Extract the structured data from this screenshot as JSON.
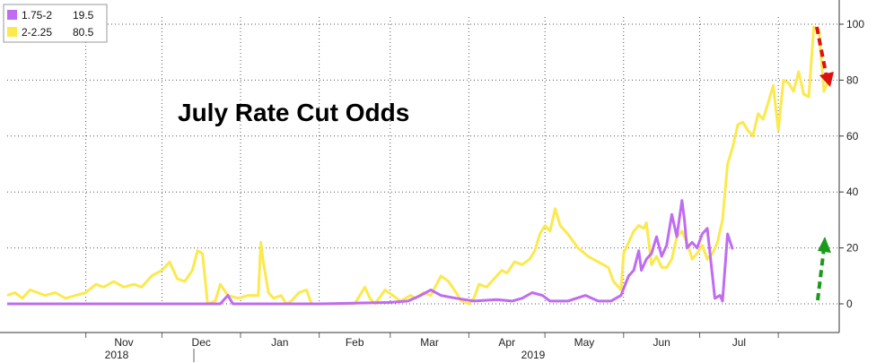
{
  "chart_data": {
    "type": "line",
    "title": "July Rate Cut Odds",
    "xlabel": "",
    "ylabel": "",
    "ylim": [
      0,
      100
    ],
    "y_ticks": [
      0,
      20,
      40,
      60,
      80,
      100
    ],
    "y_axis_side": "right",
    "grid": true,
    "legend_position": "top-left",
    "x_month_labels": [
      "Nov",
      "Dec",
      "Jan",
      "Feb",
      "Mar",
      "Apr",
      "May",
      "Jun",
      "Jul"
    ],
    "x_year_labels": [
      "2018",
      "2019"
    ],
    "series": [
      {
        "name": "1.75-2",
        "legend_value": "19.5",
        "color": "#bf6cf2",
        "points": [
          [
            "2018-10-01",
            0
          ],
          [
            "2018-11-01",
            0
          ],
          [
            "2018-12-01",
            0
          ],
          [
            "2018-12-24",
            0
          ],
          [
            "2018-12-27",
            3
          ],
          [
            "2018-12-29",
            0
          ],
          [
            "2019-02-01",
            0
          ],
          [
            "2019-03-01",
            0.5
          ],
          [
            "2019-03-08",
            1
          ],
          [
            "2019-03-13",
            3
          ],
          [
            "2019-03-17",
            5
          ],
          [
            "2019-03-21",
            3
          ],
          [
            "2019-03-27",
            2
          ],
          [
            "2019-04-03",
            1
          ],
          [
            "2019-04-12",
            1.5
          ],
          [
            "2019-04-18",
            1
          ],
          [
            "2019-04-22",
            2
          ],
          [
            "2019-04-26",
            4
          ],
          [
            "2019-04-30",
            3
          ],
          [
            "2019-05-03",
            1
          ],
          [
            "2019-05-10",
            1
          ],
          [
            "2019-05-17",
            3
          ],
          [
            "2019-05-22",
            1
          ],
          [
            "2019-05-27",
            1
          ],
          [
            "2019-05-31",
            3
          ],
          [
            "2019-06-03",
            10
          ],
          [
            "2019-06-05",
            12
          ],
          [
            "2019-06-07",
            19
          ],
          [
            "2019-06-08",
            12
          ],
          [
            "2019-06-10",
            16
          ],
          [
            "2019-06-12",
            18
          ],
          [
            "2019-06-14",
            24
          ],
          [
            "2019-06-16",
            17
          ],
          [
            "2019-06-18",
            21
          ],
          [
            "2019-06-20",
            32
          ],
          [
            "2019-06-22",
            24
          ],
          [
            "2019-06-24",
            37
          ],
          [
            "2019-06-25",
            30
          ],
          [
            "2019-06-26",
            20
          ],
          [
            "2019-06-28",
            22
          ],
          [
            "2019-06-30",
            20
          ],
          [
            "2019-07-02",
            25
          ],
          [
            "2019-07-04",
            27
          ],
          [
            "2019-07-07",
            2
          ],
          [
            "2019-07-09",
            3
          ],
          [
            "2019-07-10",
            1
          ],
          [
            "2019-07-12",
            25
          ],
          [
            "2019-07-14",
            19.5
          ]
        ]
      },
      {
        "name": "2-2.25",
        "legend_value": "80.5",
        "color": "#fbe94e",
        "points": [
          [
            "2018-10-01",
            3
          ],
          [
            "2018-10-04",
            4
          ],
          [
            "2018-10-07",
            2
          ],
          [
            "2018-10-10",
            5
          ],
          [
            "2018-10-13",
            4
          ],
          [
            "2018-10-16",
            3
          ],
          [
            "2018-10-20",
            4
          ],
          [
            "2018-10-24",
            2
          ],
          [
            "2018-10-28",
            3
          ],
          [
            "2018-11-01",
            4
          ],
          [
            "2018-11-05",
            7
          ],
          [
            "2018-11-08",
            6
          ],
          [
            "2018-11-12",
            8
          ],
          [
            "2018-11-16",
            6
          ],
          [
            "2018-11-20",
            7
          ],
          [
            "2018-11-23",
            6
          ],
          [
            "2018-11-27",
            10
          ],
          [
            "2018-12-01",
            12
          ],
          [
            "2018-12-04",
            15
          ],
          [
            "2018-12-07",
            9
          ],
          [
            "2018-12-10",
            8
          ],
          [
            "2018-12-13",
            12
          ],
          [
            "2018-12-15",
            19
          ],
          [
            "2018-12-17",
            18
          ],
          [
            "2018-12-19",
            0
          ],
          [
            "2018-12-22",
            1
          ],
          [
            "2018-12-24",
            7
          ],
          [
            "2018-12-27",
            3
          ],
          [
            "2018-12-31",
            2
          ],
          [
            "2019-01-04",
            3
          ],
          [
            "2019-01-08",
            3
          ],
          [
            "2019-01-09",
            22
          ],
          [
            "2019-01-10",
            15
          ],
          [
            "2019-01-12",
            4
          ],
          [
            "2019-01-14",
            2
          ],
          [
            "2019-01-17",
            3
          ],
          [
            "2019-01-19",
            0
          ],
          [
            "2019-01-21",
            1
          ],
          [
            "2019-01-24",
            4
          ],
          [
            "2019-01-27",
            5
          ],
          [
            "2019-01-29",
            0
          ],
          [
            "2019-02-15",
            0
          ],
          [
            "2019-02-19",
            6
          ],
          [
            "2019-02-21",
            2
          ],
          [
            "2019-02-23",
            0
          ],
          [
            "2019-02-27",
            5
          ],
          [
            "2019-03-02",
            3
          ],
          [
            "2019-03-05",
            1
          ],
          [
            "2019-03-09",
            3
          ],
          [
            "2019-03-11",
            2
          ],
          [
            "2019-03-14",
            4
          ],
          [
            "2019-03-17",
            3
          ],
          [
            "2019-03-21",
            10
          ],
          [
            "2019-03-24",
            8
          ],
          [
            "2019-03-27",
            4
          ],
          [
            "2019-03-29",
            1
          ],
          [
            "2019-04-01",
            0
          ],
          [
            "2019-04-03",
            2
          ],
          [
            "2019-04-05",
            7
          ],
          [
            "2019-04-08",
            6
          ],
          [
            "2019-04-11",
            9
          ],
          [
            "2019-04-14",
            12
          ],
          [
            "2019-04-16",
            11
          ],
          [
            "2019-04-19",
            15
          ],
          [
            "2019-04-22",
            14
          ],
          [
            "2019-04-25",
            16
          ],
          [
            "2019-04-27",
            19
          ],
          [
            "2019-04-29",
            25
          ],
          [
            "2019-05-01",
            28
          ],
          [
            "2019-05-03",
            26
          ],
          [
            "2019-05-05",
            34
          ],
          [
            "2019-05-07",
            28
          ],
          [
            "2019-05-10",
            25
          ],
          [
            "2019-05-14",
            20
          ],
          [
            "2019-05-18",
            17
          ],
          [
            "2019-05-22",
            15
          ],
          [
            "2019-05-26",
            13
          ],
          [
            "2019-05-28",
            8
          ],
          [
            "2019-05-31",
            5
          ],
          [
            "2019-06-01",
            18
          ],
          [
            "2019-06-03",
            22
          ],
          [
            "2019-06-05",
            26
          ],
          [
            "2019-06-07",
            28
          ],
          [
            "2019-06-09",
            27
          ],
          [
            "2019-06-10",
            29
          ],
          [
            "2019-06-12",
            14
          ],
          [
            "2019-06-14",
            17
          ],
          [
            "2019-06-16",
            13
          ],
          [
            "2019-06-18",
            13
          ],
          [
            "2019-06-20",
            16
          ],
          [
            "2019-06-22",
            24
          ],
          [
            "2019-06-24",
            26
          ],
          [
            "2019-06-26",
            22
          ],
          [
            "2019-06-28",
            16
          ],
          [
            "2019-06-30",
            18
          ],
          [
            "2019-07-02",
            21
          ],
          [
            "2019-07-04",
            16
          ],
          [
            "2019-07-06",
            18
          ],
          [
            "2019-07-08",
            22
          ],
          [
            "2019-07-10",
            30
          ],
          [
            "2019-07-12",
            50
          ],
          [
            "2019-07-14",
            56
          ],
          [
            "2019-07-16",
            64
          ],
          [
            "2019-07-18",
            65
          ],
          [
            "2019-07-20",
            62
          ],
          [
            "2019-07-22",
            60
          ],
          [
            "2019-07-24",
            68
          ],
          [
            "2019-07-26",
            66
          ],
          [
            "2019-07-28",
            72
          ],
          [
            "2019-07-30",
            78
          ],
          [
            "2019-08-01",
            62
          ],
          [
            "2019-08-03",
            80
          ],
          [
            "2019-08-05",
            79
          ],
          [
            "2019-08-07",
            76
          ],
          [
            "2019-08-09",
            83
          ],
          [
            "2019-08-11",
            75
          ],
          [
            "2019-08-13",
            74
          ],
          [
            "2019-08-15",
            99
          ],
          [
            "2019-08-17",
            98
          ],
          [
            "2019-08-19",
            76
          ],
          [
            "2019-08-21",
            80.5
          ]
        ]
      }
    ]
  }
}
